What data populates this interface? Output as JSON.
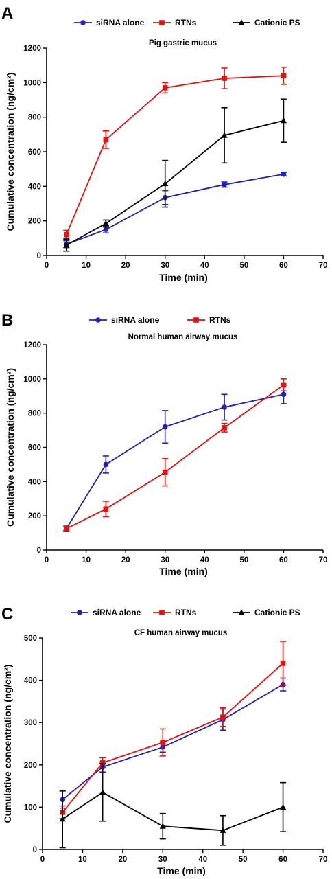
{
  "chart_data": [
    {
      "type": "line",
      "panel": "A",
      "title": "Pig gastric mucus",
      "xlabel": "Time (min)",
      "ylabel": "Cumulative concentration (ng/cm²)",
      "xlim": [
        0,
        70
      ],
      "ylim": [
        0,
        1200
      ],
      "xticks": [
        0,
        10,
        20,
        30,
        40,
        50,
        60,
        70
      ],
      "yticks": [
        0,
        200,
        400,
        600,
        800,
        1000,
        1200
      ],
      "legend_position": "top",
      "grid": false,
      "series": [
        {
          "name": "siRNA alone",
          "color": "#1f1fbf",
          "marker": "circle",
          "x": [
            5,
            15,
            30,
            45,
            60
          ],
          "y": [
            65,
            150,
            335,
            410,
            470
          ],
          "err": [
            20,
            20,
            40,
            15,
            10
          ]
        },
        {
          "name": "RTNs",
          "color": "#e8100f",
          "marker": "square",
          "x": [
            5,
            15,
            30,
            45,
            60
          ],
          "y": [
            120,
            670,
            970,
            1025,
            1040
          ],
          "err": [
            25,
            50,
            30,
            60,
            50
          ]
        },
        {
          "name": "Cationic PS",
          "color": "#000000",
          "marker": "triangle",
          "x": [
            5,
            15,
            30,
            45,
            60
          ],
          "y": [
            60,
            185,
            415,
            695,
            780
          ],
          "err": [
            35,
            20,
            135,
            160,
            125
          ]
        }
      ]
    },
    {
      "type": "line",
      "panel": "B",
      "title": "Normal human airway mucus",
      "xlabel": "Time (min)",
      "ylabel": "Cumulative concentration (ng/cm²)",
      "xlim": [
        0,
        70
      ],
      "ylim": [
        0,
        1200
      ],
      "xticks": [
        0,
        10,
        20,
        30,
        40,
        50,
        60,
        70
      ],
      "yticks": [
        0,
        200,
        400,
        600,
        800,
        1000,
        1200
      ],
      "legend_position": "top",
      "grid": false,
      "series": [
        {
          "name": "siRNA alone",
          "color": "#1f1fbf",
          "marker": "circle",
          "x": [
            5,
            15,
            30,
            45,
            60
          ],
          "y": [
            125,
            500,
            720,
            835,
            910
          ],
          "err": [
            15,
            50,
            95,
            75,
            55
          ]
        },
        {
          "name": "RTNs",
          "color": "#e8100f",
          "marker": "square",
          "x": [
            5,
            15,
            30,
            45,
            60
          ],
          "y": [
            125,
            240,
            455,
            715,
            965
          ],
          "err": [
            10,
            45,
            80,
            25,
            35
          ]
        }
      ]
    },
    {
      "type": "line",
      "panel": "C",
      "title": "CF human airway mucus",
      "xlabel": "Time (min)",
      "ylabel": "Cumulative concentration (ng/cm²)",
      "xlim": [
        0,
        70
      ],
      "ylim": [
        0,
        500
      ],
      "xticks": [
        0,
        10,
        20,
        30,
        40,
        50,
        60,
        70
      ],
      "yticks": [
        0,
        100,
        200,
        300,
        400,
        500
      ],
      "legend_position": "top",
      "grid": false,
      "series": [
        {
          "name": "siRNA alone",
          "color": "#1f1fbf",
          "marker": "circle",
          "x": [
            5,
            15,
            30,
            45,
            60
          ],
          "y": [
            118,
            195,
            242,
            307,
            390
          ],
          "err": [
            20,
            12,
            12,
            25,
            15
          ]
        },
        {
          "name": "RTNs",
          "color": "#e8100f",
          "marker": "square",
          "x": [
            5,
            15,
            30,
            45,
            60
          ],
          "y": [
            88,
            205,
            253,
            313,
            440
          ],
          "err": [
            15,
            12,
            32,
            22,
            52
          ]
        },
        {
          "name": "Cationic PS",
          "color": "#000000",
          "marker": "triangle",
          "x": [
            5,
            15,
            30,
            45,
            60
          ],
          "y": [
            72,
            135,
            55,
            45,
            100
          ],
          "err": [
            68,
            68,
            30,
            35,
            58
          ]
        }
      ]
    }
  ]
}
